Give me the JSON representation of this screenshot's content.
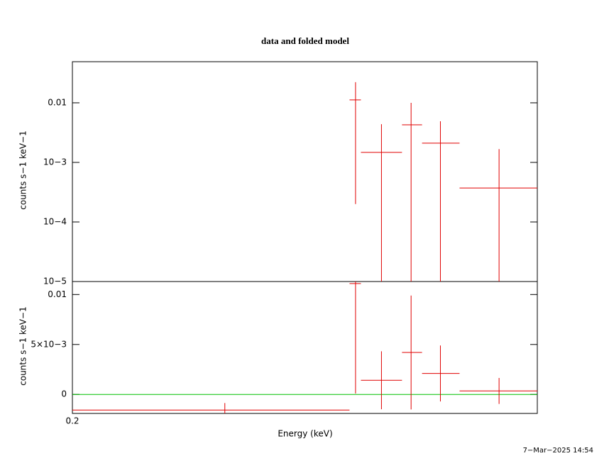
{
  "footer": "7−Mar−2025 14:54",
  "chart_data": [
    {
      "type": "errorbar",
      "title": "data and folded model",
      "ylabel": "counts s−1 keV−1",
      "xlim": [
        0.2,
        1.0
      ],
      "xscale": "log",
      "ylim": [
        1e-05,
        0.049
      ],
      "yscale": "log",
      "yticks": [
        {
          "value": 0.01,
          "label": "0.01"
        },
        {
          "value": 0.001,
          "label": "10−3"
        },
        {
          "value": 0.0001,
          "label": "10−4"
        },
        {
          "value": 1e-05,
          "label": "10−5"
        }
      ],
      "series": [
        {
          "color": "#e00000",
          "x": [
            0.533,
            0.583,
            0.646,
            0.715,
            0.876
          ],
          "x_low": [
            0.522,
            0.543,
            0.626,
            0.671,
            0.764
          ],
          "x_high": [
            0.543,
            0.626,
            0.671,
            0.764,
            1.0
          ],
          "values": [
            0.0112,
            0.00147,
            0.00428,
            0.0021,
            0.000372
          ],
          "errors": [
            0.011,
            0.0029,
            0.0057,
            0.0028,
            0.0013
          ]
        }
      ]
    },
    {
      "type": "errorbar",
      "ylabel": "counts s−1 keV−1",
      "xlabel": "Energy (keV)",
      "xlim": [
        0.2,
        1.0
      ],
      "xscale": "log",
      "xticks": [
        0.2
      ],
      "ylim": [
        -0.0019,
        0.0113
      ],
      "yscale": "linear",
      "yticks": [
        0.01,
        {
          "value": 0.005,
          "label": "5×10−3"
        },
        0
      ],
      "series": [
        {
          "color": "#e00000",
          "x": [
            0.339,
            0.533,
            0.583,
            0.646,
            0.715,
            0.876
          ],
          "x_low": [
            0.2,
            0.522,
            0.543,
            0.626,
            0.671,
            0.764
          ],
          "x_high": [
            0.522,
            0.543,
            0.626,
            0.671,
            0.764,
            1.0
          ],
          "values": [
            -0.00156,
            0.0111,
            0.00142,
            0.0042,
            0.0021,
            0.00035
          ],
          "errors": [
            0.0007,
            0.011,
            0.0029,
            0.0057,
            0.0028,
            0.0013
          ]
        }
      ],
      "model": {
        "color": "#00c000",
        "x": [
          0.2,
          1.0
        ],
        "values": [
          0,
          0
        ]
      }
    }
  ]
}
